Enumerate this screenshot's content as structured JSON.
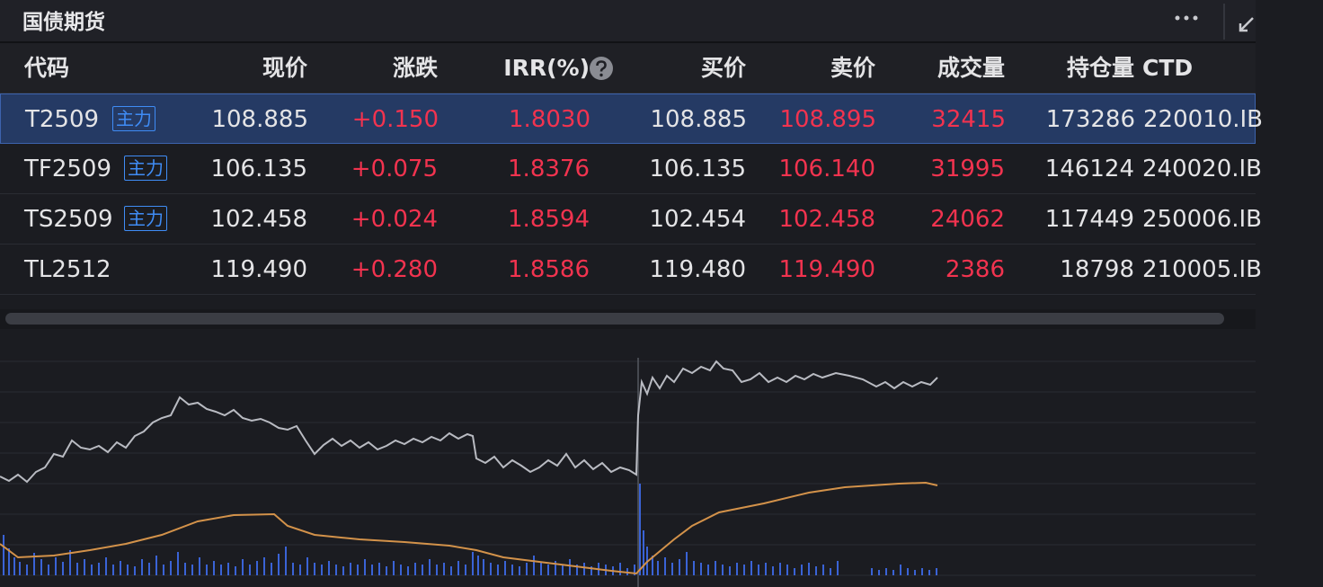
{
  "header": {
    "title": "国债期货"
  },
  "table": {
    "columns": [
      "代码",
      "现价",
      "涨跌",
      "IRR(%)",
      "买价",
      "卖价",
      "成交量",
      "持仓量",
      "CTD"
    ],
    "rows": [
      {
        "code": "T2509",
        "tag": "主力",
        "cells": [
          "108.885",
          "+0.150",
          "1.8030",
          "108.885",
          "108.895",
          "32415",
          "173286",
          "220010.IB"
        ]
      },
      {
        "code": "TF2509",
        "tag": "主力",
        "cells": [
          "106.135",
          "+0.075",
          "1.8376",
          "106.135",
          "106.140",
          "31995",
          "146124",
          "240020.IB"
        ]
      },
      {
        "code": "TS2509",
        "tag": "主力",
        "cells": [
          "102.458",
          "+0.024",
          "1.8594",
          "102.454",
          "102.458",
          "24062",
          "117449",
          "250006.IB"
        ]
      },
      {
        "code": "TL2512",
        "cells": [
          "119.490",
          "+0.280",
          "1.8586",
          "119.480",
          "119.490",
          "2386",
          "18798",
          "210005.IB"
        ]
      }
    ]
  }
}
